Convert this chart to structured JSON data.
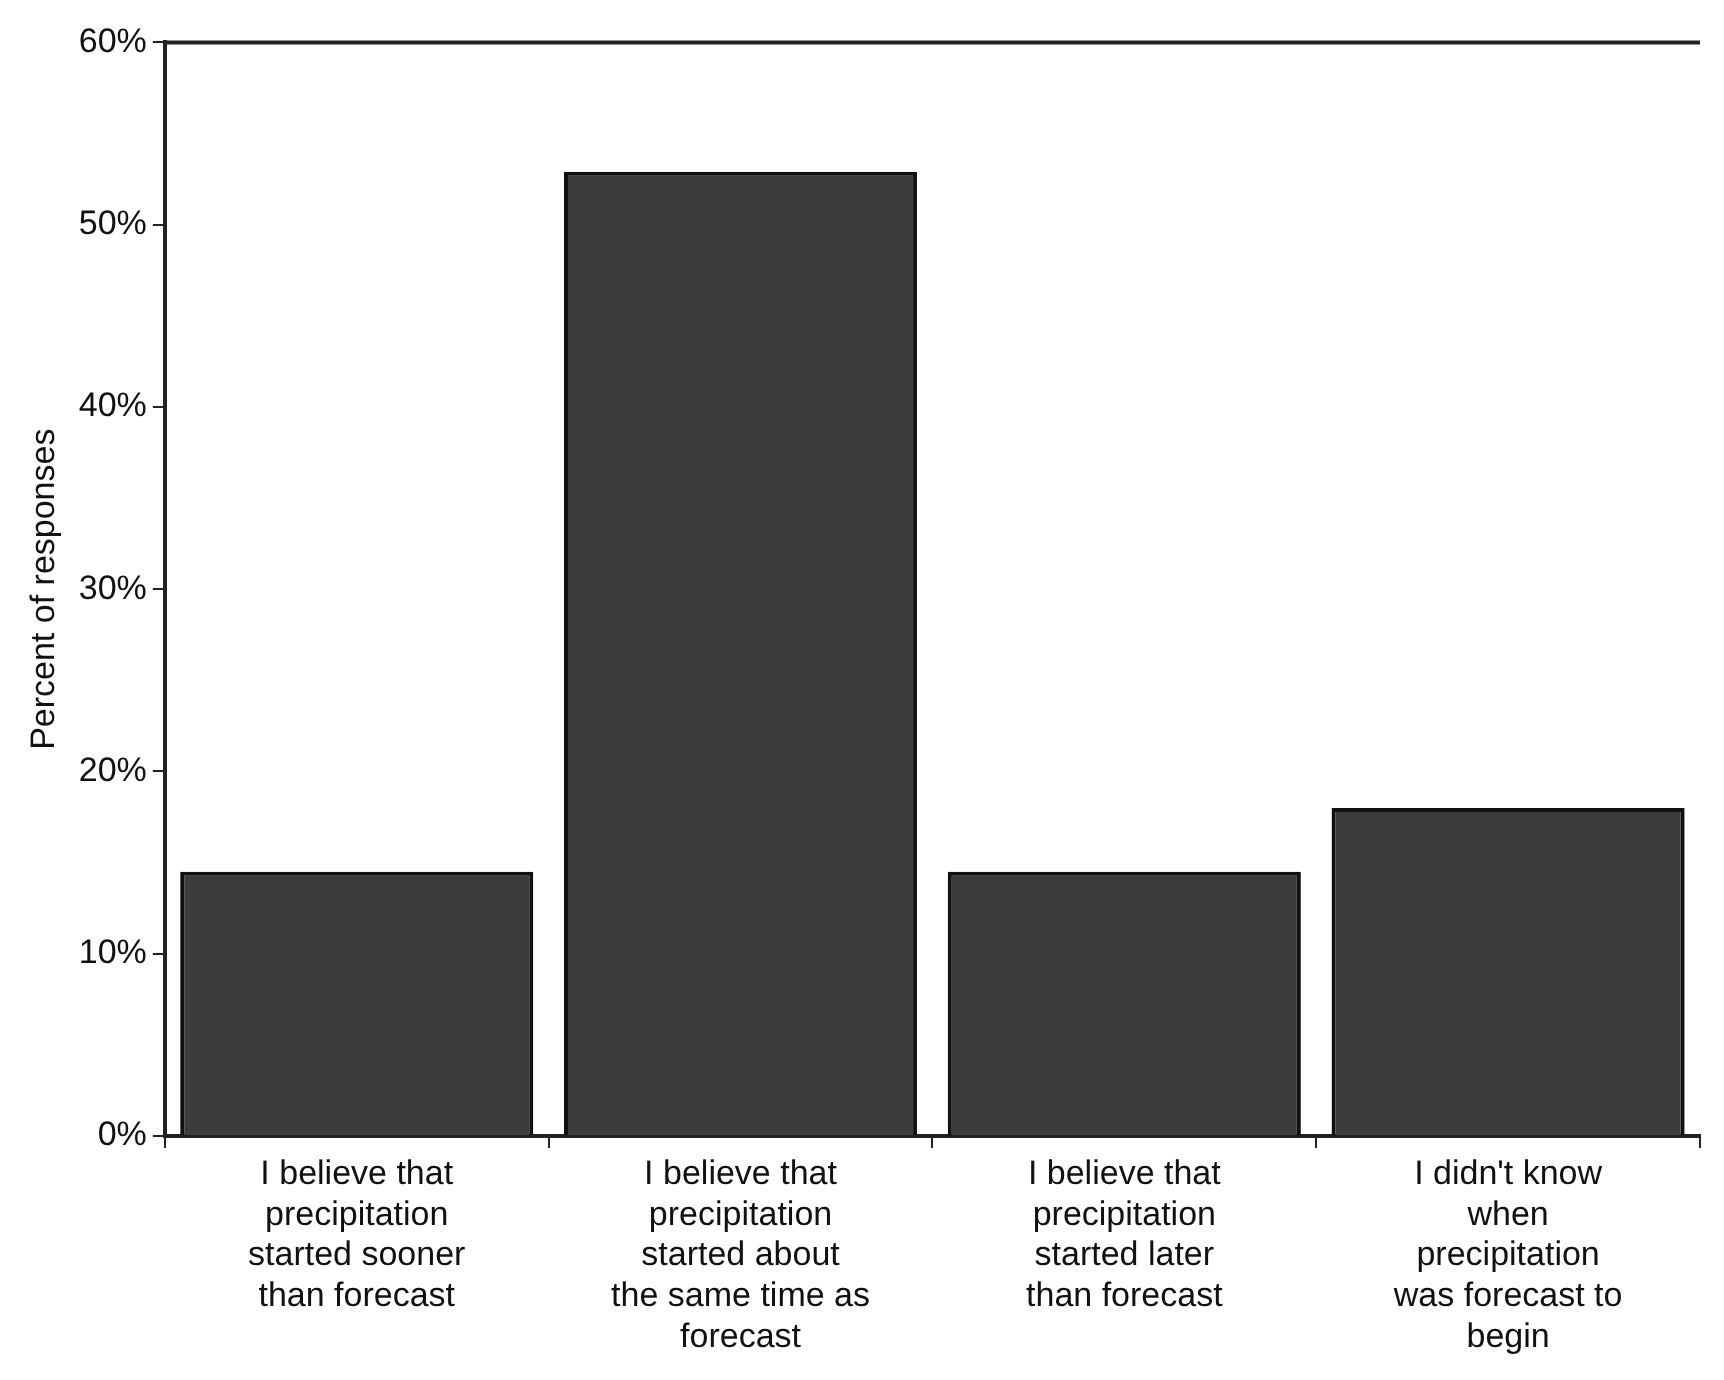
{
  "chart_data": {
    "type": "bar",
    "ylabel": "Percent of responses",
    "categories": [
      "I believe that precipitation started sooner than forecast",
      "I believe that precipitation started about the same time as forecast",
      "I believe that precipitation started later than forecast",
      "I didn't know when precipitation was forecast to begin"
    ],
    "values": [
      14.5,
      52.9,
      14.5,
      18.0
    ],
    "color": "#3c3c3c",
    "ylim": [
      0,
      60
    ],
    "yticks": [
      {
        "value": 0,
        "label": "0%"
      },
      {
        "value": 10,
        "label": "10%"
      },
      {
        "value": 20,
        "label": "20%"
      },
      {
        "value": 30,
        "label": "30%"
      },
      {
        "value": 40,
        "label": "40%"
      },
      {
        "value": 50,
        "label": "50%"
      },
      {
        "value": 60,
        "label": "60%"
      }
    ],
    "grid": false,
    "legend": false
  }
}
